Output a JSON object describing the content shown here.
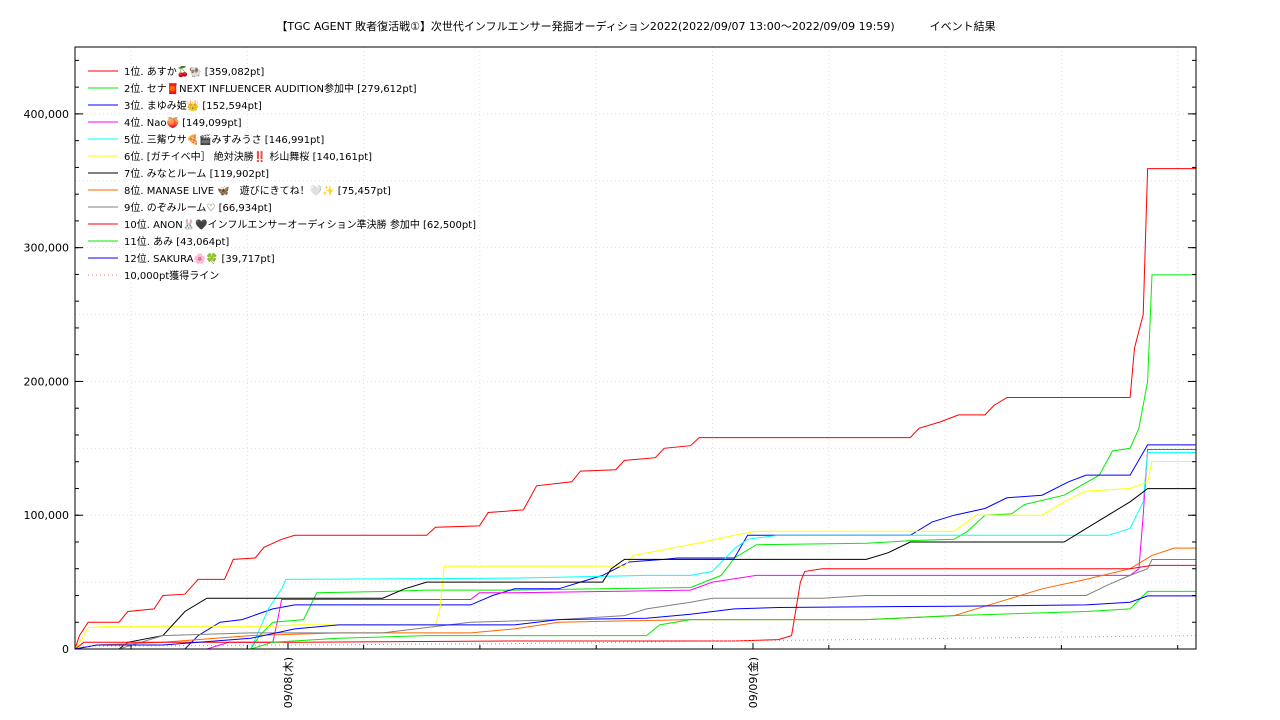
{
  "chart_data": {
    "type": "line",
    "title": "【TGC AGENT 敗者復活戦①】次世代インフルエンサー発掘オーディション2022(2022/09/07 13:00〜2022/09/09 19:59)",
    "subtitle": "イベント結果",
    "xlabel": "",
    "ylabel": "",
    "x_range": [
      "2022/09/07 13:00",
      "2022/09/09 19:59"
    ],
    "x_ticks": [
      "09/08(木)",
      "09/09(金)"
    ],
    "y_ticks": [
      "0",
      "100,000",
      "200,000",
      "300,000",
      "400,000"
    ],
    "ylim": [
      0,
      450000
    ],
    "grid": true,
    "legend_position": "top-left",
    "series": [
      {
        "name": "1位. あすか🍒🐏 [359,082pt]",
        "color": "#ff0000",
        "dash": "",
        "points": [
          [
            0,
            0
          ],
          [
            1,
            10000
          ],
          [
            3,
            20000
          ],
          [
            10,
            20000
          ],
          [
            12,
            28000
          ],
          [
            18,
            30000
          ],
          [
            20,
            40000
          ],
          [
            25,
            41000
          ],
          [
            28,
            52000
          ],
          [
            34,
            52000
          ],
          [
            36,
            67000
          ],
          [
            41,
            68000
          ],
          [
            43,
            76000
          ],
          [
            47,
            82000
          ],
          [
            50,
            85000
          ],
          [
            80,
            85000
          ],
          [
            82,
            91000
          ],
          [
            92,
            92000
          ],
          [
            94,
            102000
          ],
          [
            102,
            104000
          ],
          [
            105,
            122000
          ],
          [
            113,
            125000
          ],
          [
            115,
            133000
          ],
          [
            123,
            134000
          ],
          [
            125,
            141000
          ],
          [
            132,
            143000
          ],
          [
            134,
            150000
          ],
          [
            140,
            152000
          ],
          [
            142,
            158000
          ],
          [
            190,
            158000
          ],
          [
            192,
            165000
          ],
          [
            197,
            170000
          ],
          [
            201,
            175000
          ],
          [
            207,
            175000
          ],
          [
            209,
            182000
          ],
          [
            212,
            188000
          ],
          [
            240,
            188000
          ],
          [
            241,
            225000
          ],
          [
            243,
            250000
          ],
          [
            244,
            359082
          ],
          [
            255,
            359082
          ]
        ]
      },
      {
        "name": "2位. セナ🧧NEXT INFLUENCER AUDITION参加中 [279,612pt]",
        "color": "#00ee00",
        "dash": "",
        "points": [
          [
            0,
            0
          ],
          [
            40,
            0
          ],
          [
            42,
            10000
          ],
          [
            45,
            20000
          ],
          [
            52,
            22000
          ],
          [
            55,
            42000
          ],
          [
            70,
            43000
          ],
          [
            80,
            44000
          ],
          [
            100,
            44000
          ],
          [
            120,
            45000
          ],
          [
            140,
            46000
          ],
          [
            147,
            55000
          ],
          [
            150,
            68000
          ],
          [
            155,
            78000
          ],
          [
            180,
            79000
          ],
          [
            185,
            80000
          ],
          [
            190,
            81000
          ],
          [
            200,
            82000
          ],
          [
            203,
            88000
          ],
          [
            207,
            100000
          ],
          [
            213,
            101000
          ],
          [
            216,
            108000
          ],
          [
            225,
            115000
          ],
          [
            233,
            130000
          ],
          [
            236,
            148000
          ],
          [
            240,
            150000
          ],
          [
            242,
            165000
          ],
          [
            244,
            200000
          ],
          [
            245,
            279612
          ],
          [
            255,
            279612
          ]
        ]
      },
      {
        "name": "3位. まゆみ姫👑 [152,594pt]",
        "color": "#0000ff",
        "dash": "",
        "points": [
          [
            0,
            0
          ],
          [
            25,
            0
          ],
          [
            28,
            10000
          ],
          [
            33,
            20000
          ],
          [
            38,
            22000
          ],
          [
            45,
            30000
          ],
          [
            50,
            33000
          ],
          [
            90,
            33000
          ],
          [
            95,
            40000
          ],
          [
            100,
            45000
          ],
          [
            110,
            45000
          ],
          [
            115,
            50000
          ],
          [
            120,
            55000
          ],
          [
            126,
            65000
          ],
          [
            134,
            67000
          ],
          [
            137,
            68000
          ],
          [
            150,
            68000
          ],
          [
            153,
            85000
          ],
          [
            190,
            85000
          ],
          [
            195,
            95000
          ],
          [
            200,
            100000
          ],
          [
            207,
            105000
          ],
          [
            212,
            113000
          ],
          [
            220,
            115000
          ],
          [
            226,
            125000
          ],
          [
            230,
            130000
          ],
          [
            240,
            130000
          ],
          [
            244,
            152594
          ],
          [
            255,
            152594
          ]
        ]
      },
      {
        "name": "4位. Nao🍑 [149,099pt]",
        "color": "#ff00ff",
        "dash": "",
        "points": [
          [
            0,
            0
          ],
          [
            30,
            0
          ],
          [
            35,
            5000
          ],
          [
            45,
            5000
          ],
          [
            46,
            20000
          ],
          [
            47,
            37000
          ],
          [
            90,
            37000
          ],
          [
            92,
            42000
          ],
          [
            100,
            42000
          ],
          [
            120,
            43000
          ],
          [
            140,
            44000
          ],
          [
            145,
            50000
          ],
          [
            155,
            55000
          ],
          [
            200,
            55000
          ],
          [
            240,
            55000
          ],
          [
            242,
            60000
          ],
          [
            243,
            100000
          ],
          [
            244,
            149099
          ],
          [
            255,
            149099
          ]
        ]
      },
      {
        "name": "5位. 三觜ウサ🍕🎬みすみうさ [146,991pt]",
        "color": "#00ffff",
        "dash": "",
        "points": [
          [
            0,
            0
          ],
          [
            40,
            0
          ],
          [
            42,
            15000
          ],
          [
            44,
            30000
          ],
          [
            47,
            45000
          ],
          [
            48,
            52000
          ],
          [
            100,
            53000
          ],
          [
            130,
            55000
          ],
          [
            140,
            55000
          ],
          [
            145,
            58000
          ],
          [
            150,
            75000
          ],
          [
            153,
            82000
          ],
          [
            160,
            85000
          ],
          [
            235,
            85000
          ],
          [
            240,
            90000
          ],
          [
            243,
            110000
          ],
          [
            244,
            146991
          ],
          [
            255,
            146991
          ]
        ]
      },
      {
        "name": "6位. [ガチイベ中］ 絶対決勝‼️ 杉山舞桜 [140,161pt]",
        "color": "#ffff00",
        "dash": "",
        "points": [
          [
            0,
            0
          ],
          [
            2,
            10000
          ],
          [
            3,
            16000
          ],
          [
            8,
            17000
          ],
          [
            30,
            17000
          ],
          [
            45,
            17000
          ],
          [
            50,
            18000
          ],
          [
            82,
            18000
          ],
          [
            83,
            30000
          ],
          [
            84,
            62000
          ],
          [
            125,
            62000
          ],
          [
            127,
            70000
          ],
          [
            135,
            75000
          ],
          [
            143,
            80000
          ],
          [
            150,
            85000
          ],
          [
            155,
            88000
          ],
          [
            200,
            88000
          ],
          [
            205,
            100000
          ],
          [
            220,
            100000
          ],
          [
            225,
            110000
          ],
          [
            230,
            118000
          ],
          [
            240,
            120000
          ],
          [
            244,
            125000
          ],
          [
            245,
            140161
          ],
          [
            255,
            140161
          ]
        ]
      },
      {
        "name": "7位. みなとルーム [119,902pt]",
        "color": "#000000",
        "dash": "",
        "points": [
          [
            0,
            0
          ],
          [
            10,
            0
          ],
          [
            12,
            5000
          ],
          [
            20,
            10000
          ],
          [
            25,
            28000
          ],
          [
            30,
            38000
          ],
          [
            70,
            38000
          ],
          [
            75,
            45000
          ],
          [
            80,
            50000
          ],
          [
            100,
            50000
          ],
          [
            120,
            50000
          ],
          [
            122,
            60000
          ],
          [
            125,
            67000
          ],
          [
            140,
            67000
          ],
          [
            180,
            67000
          ],
          [
            185,
            72000
          ],
          [
            190,
            80000
          ],
          [
            210,
            80000
          ],
          [
            225,
            80000
          ],
          [
            230,
            90000
          ],
          [
            235,
            100000
          ],
          [
            240,
            110000
          ],
          [
            244,
            119902
          ],
          [
            255,
            119902
          ]
        ]
      },
      {
        "name": "8位. MANASE LIVE 🦋　遊びにきてね！🤍✨ [75,457pt]",
        "color": "#ff6600",
        "dash": "",
        "points": [
          [
            0,
            0
          ],
          [
            5,
            3000
          ],
          [
            20,
            5000
          ],
          [
            40,
            10000
          ],
          [
            60,
            12000
          ],
          [
            90,
            12000
          ],
          [
            100,
            15000
          ],
          [
            110,
            20000
          ],
          [
            140,
            22000
          ],
          [
            180,
            22000
          ],
          [
            200,
            25000
          ],
          [
            210,
            35000
          ],
          [
            220,
            45000
          ],
          [
            230,
            52000
          ],
          [
            240,
            60000
          ],
          [
            245,
            70000
          ],
          [
            250,
            75457
          ],
          [
            255,
            75457
          ]
        ]
      },
      {
        "name": "9位. のぞみルーム♡ [66,934pt]",
        "color": "#808080",
        "dash": "",
        "points": [
          [
            0,
            0
          ],
          [
            10,
            0
          ],
          [
            15,
            5000
          ],
          [
            20,
            10000
          ],
          [
            40,
            12000
          ],
          [
            70,
            12000
          ],
          [
            90,
            20000
          ],
          [
            110,
            22000
          ],
          [
            125,
            25000
          ],
          [
            130,
            30000
          ],
          [
            140,
            35000
          ],
          [
            145,
            38000
          ],
          [
            170,
            38000
          ],
          [
            180,
            40000
          ],
          [
            200,
            40000
          ],
          [
            230,
            40000
          ],
          [
            235,
            48000
          ],
          [
            240,
            55000
          ],
          [
            244,
            60000
          ],
          [
            245,
            66934
          ],
          [
            255,
            66934
          ]
        ]
      },
      {
        "name": "10位. ANON🐰🖤インフルエンサーオーディション準決勝 参加中 [62,500pt]",
        "color": "#ff0000",
        "dash": "",
        "points": [
          [
            0,
            0
          ],
          [
            2,
            5000
          ],
          [
            50,
            5000
          ],
          [
            100,
            6000
          ],
          [
            150,
            6000
          ],
          [
            160,
            7000
          ],
          [
            163,
            10000
          ],
          [
            165,
            50000
          ],
          [
            166,
            58000
          ],
          [
            170,
            60000
          ],
          [
            200,
            60000
          ],
          [
            240,
            60000
          ],
          [
            245,
            62500
          ],
          [
            255,
            62500
          ]
        ]
      },
      {
        "name": "11位. あみ [43,064pt]",
        "color": "#00ee00",
        "dash": "",
        "points": [
          [
            0,
            0
          ],
          [
            40,
            0
          ],
          [
            45,
            5000
          ],
          [
            60,
            8000
          ],
          [
            80,
            10000
          ],
          [
            100,
            10000
          ],
          [
            130,
            10000
          ],
          [
            133,
            18000
          ],
          [
            140,
            22000
          ],
          [
            180,
            22000
          ],
          [
            200,
            25000
          ],
          [
            230,
            28000
          ],
          [
            240,
            30000
          ],
          [
            244,
            43064
          ],
          [
            255,
            43064
          ]
        ]
      },
      {
        "name": "12位. SAKURA🌸🍀 [39,717pt]",
        "color": "#0000ff",
        "dash": "",
        "points": [
          [
            0,
            0
          ],
          [
            5,
            3000
          ],
          [
            20,
            3000
          ],
          [
            40,
            8000
          ],
          [
            50,
            15000
          ],
          [
            60,
            18000
          ],
          [
            100,
            18000
          ],
          [
            110,
            22000
          ],
          [
            130,
            23000
          ],
          [
            140,
            26000
          ],
          [
            150,
            30000
          ],
          [
            160,
            31000
          ],
          [
            200,
            32000
          ],
          [
            230,
            33000
          ],
          [
            240,
            35000
          ],
          [
            244,
            39717
          ],
          [
            255,
            39717
          ]
        ]
      },
      {
        "name": "10,000pt獲得ライン",
        "color": "#ff7777",
        "dash": "1,3",
        "points": [
          [
            0,
            2000
          ],
          [
            50,
            3000
          ],
          [
            100,
            4000
          ],
          [
            150,
            6000
          ],
          [
            200,
            8000
          ],
          [
            255,
            10000
          ]
        ]
      }
    ]
  }
}
